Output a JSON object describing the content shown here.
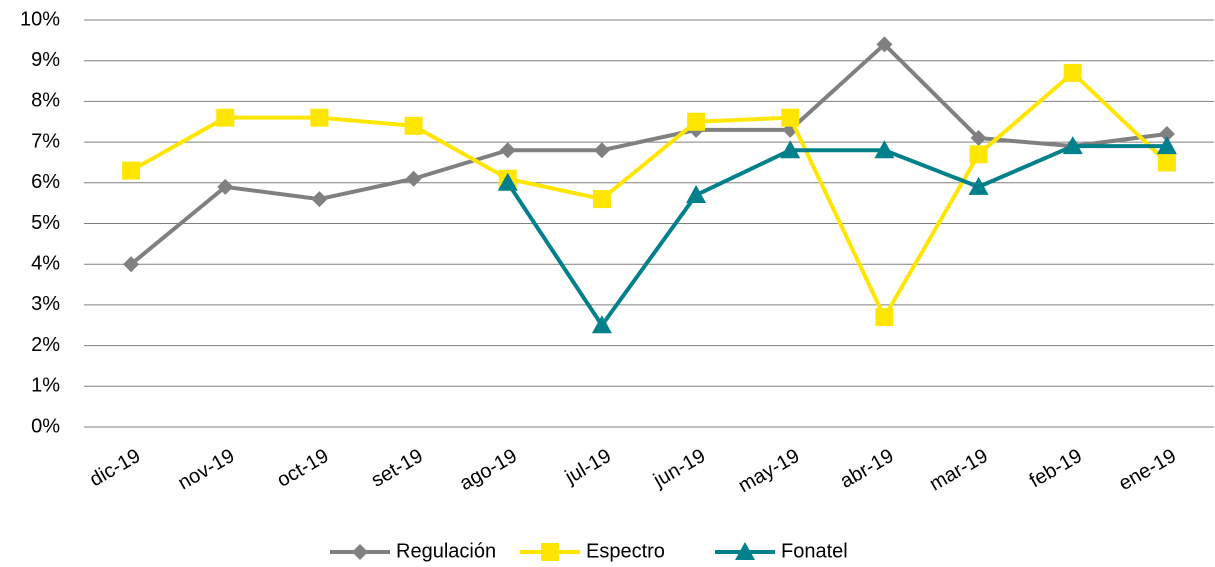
{
  "chart_data": {
    "type": "line",
    "categories": [
      "dic-19",
      "nov-19",
      "oct-19",
      "set-19",
      "ago-19",
      "jul-19",
      "jun-19",
      "may-19",
      "abr-19",
      "mar-19",
      "feb-19",
      "ene-19"
    ],
    "series": [
      {
        "name": "Regulación",
        "color": "#808080",
        "marker": "diamond",
        "values": [
          4.0,
          5.9,
          5.6,
          6.1,
          6.8,
          6.8,
          7.3,
          7.3,
          9.4,
          7.1,
          6.9,
          7.2
        ]
      },
      {
        "name": "Espectro",
        "color": "#FFE600",
        "marker": "square",
        "values": [
          6.3,
          7.6,
          7.6,
          7.4,
          6.1,
          5.6,
          7.5,
          7.6,
          2.7,
          6.7,
          8.7,
          6.5
        ]
      },
      {
        "name": "Fonatel",
        "color": "#00808A",
        "marker": "triangle",
        "values": [
          null,
          null,
          null,
          null,
          6.0,
          2.5,
          5.7,
          6.8,
          6.8,
          5.9,
          6.9,
          6.9
        ]
      }
    ],
    "ylim": [
      0,
      10
    ],
    "yticks": [
      {
        "value": 0,
        "label": "0%"
      },
      {
        "value": 1,
        "label": "1%"
      },
      {
        "value": 2,
        "label": "2%"
      },
      {
        "value": 3,
        "label": "3%"
      },
      {
        "value": 4,
        "label": "4%"
      },
      {
        "value": 5,
        "label": "5%"
      },
      {
        "value": 6,
        "label": "6%"
      },
      {
        "value": 7,
        "label": "7%"
      },
      {
        "value": 8,
        "label": "8%"
      },
      {
        "value": 9,
        "label": "9%"
      },
      {
        "value": 10,
        "label": "10%"
      }
    ],
    "grid": true,
    "legend": "bottom"
  }
}
